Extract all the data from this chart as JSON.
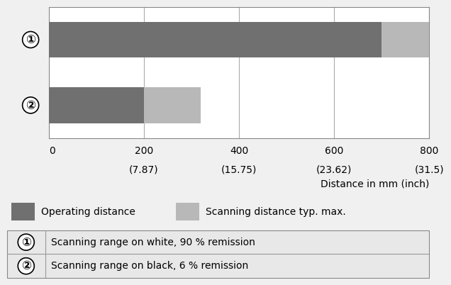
{
  "bar1_operating": 700,
  "bar1_scanning": 100,
  "bar2_operating": 200,
  "bar2_scanning": 120,
  "x_max": 800,
  "x_ticks": [
    0,
    200,
    400,
    600,
    800
  ],
  "x_tick_labels_mm": [
    "0",
    "200",
    "400",
    "600",
    "800"
  ],
  "x_tick_labels_inch": [
    "",
    "(7.87)",
    "(15.75)",
    "(23.62)",
    "(31.5)"
  ],
  "xlabel": "Distance in mm (inch)",
  "color_operating": "#707070",
  "color_scanning": "#b8b8b8",
  "color_bg": "#f0f0f0",
  "color_chart_bg": "#ffffff",
  "label_operating": "Operating distance",
  "label_scanning": "Scanning distance typ. max.",
  "row1_label": "①",
  "row2_label": "②",
  "note1": "Scanning range on white, 90 % remission",
  "note2": "Scanning range on black, 6 % remission",
  "bar_height": 0.55,
  "divider_color": "#999999",
  "table_bg": "#e8e8e8"
}
